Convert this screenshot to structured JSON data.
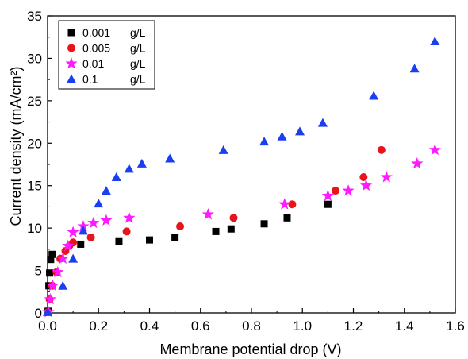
{
  "chart_data": {
    "type": "scatter",
    "xlabel": "Membrane potential drop (V)",
    "ylabel": "Current density (mA/cm²)",
    "xlim": [
      0,
      1.6
    ],
    "ylim": [
      0,
      35
    ],
    "xticks": [
      "0.0",
      "0.2",
      "0.4",
      "0.6",
      "0.8",
      "1.0",
      "1.2",
      "1.4",
      "1.6"
    ],
    "yticks": [
      "0",
      "5",
      "10",
      "15",
      "20",
      "25",
      "30",
      "35"
    ],
    "legend_position": "top-left",
    "grid": false,
    "series": [
      {
        "name": "0.001 g/L",
        "legend_name": "0.001",
        "legend_unit": "g/L",
        "marker": "square",
        "color": "#000000",
        "points": [
          [
            0.002,
            0.2
          ],
          [
            0.005,
            3.2
          ],
          [
            0.008,
            4.7
          ],
          [
            0.012,
            6.3
          ],
          [
            0.018,
            6.9
          ],
          [
            0.13,
            8.1
          ],
          [
            0.28,
            8.4
          ],
          [
            0.4,
            8.6
          ],
          [
            0.5,
            8.9
          ],
          [
            0.66,
            9.6
          ],
          [
            0.72,
            9.9
          ],
          [
            0.85,
            10.5
          ],
          [
            0.94,
            11.2
          ],
          [
            1.1,
            12.8
          ]
        ]
      },
      {
        "name": "0.005 g/L",
        "legend_name": "0.005",
        "legend_unit": "g/L",
        "marker": "circle",
        "color": "#e8141b",
        "points": [
          [
            0.002,
            0.1
          ],
          [
            0.008,
            1.6
          ],
          [
            0.018,
            3.2
          ],
          [
            0.035,
            4.8
          ],
          [
            0.05,
            6.4
          ],
          [
            0.07,
            7.3
          ],
          [
            0.085,
            7.9
          ],
          [
            0.1,
            8.3
          ],
          [
            0.17,
            8.9
          ],
          [
            0.31,
            9.6
          ],
          [
            0.52,
            10.2
          ],
          [
            0.73,
            11.2
          ],
          [
            0.96,
            12.8
          ],
          [
            1.13,
            14.4
          ],
          [
            1.24,
            16.0
          ],
          [
            1.31,
            19.2
          ]
        ]
      },
      {
        "name": "0.01 g/L",
        "legend_name": "0.01",
        "legend_unit": "g/L",
        "marker": "star",
        "color": "#ff1aff",
        "points": [
          [
            0.003,
            0.1
          ],
          [
            0.01,
            1.6
          ],
          [
            0.02,
            3.2
          ],
          [
            0.04,
            4.8
          ],
          [
            0.06,
            6.4
          ],
          [
            0.08,
            7.9
          ],
          [
            0.1,
            9.5
          ],
          [
            0.14,
            10.2
          ],
          [
            0.18,
            10.6
          ],
          [
            0.23,
            10.9
          ],
          [
            0.32,
            11.2
          ],
          [
            0.63,
            11.6
          ],
          [
            0.93,
            12.8
          ],
          [
            1.1,
            13.8
          ],
          [
            1.18,
            14.4
          ],
          [
            1.25,
            15.0
          ],
          [
            1.33,
            16.0
          ],
          [
            1.45,
            17.6
          ],
          [
            1.52,
            19.2
          ]
        ]
      },
      {
        "name": "0.1 g/L",
        "legend_name": "0.1",
        "legend_unit": "g/L",
        "marker": "triangle",
        "color": "#1a3ff0",
        "points": [
          [
            0.0,
            0.1
          ],
          [
            0.06,
            3.2
          ],
          [
            0.1,
            6.4
          ],
          [
            0.14,
            9.7
          ],
          [
            0.2,
            12.9
          ],
          [
            0.23,
            14.4
          ],
          [
            0.27,
            16.0
          ],
          [
            0.32,
            17.0
          ],
          [
            0.37,
            17.6
          ],
          [
            0.48,
            18.2
          ],
          [
            0.69,
            19.2
          ],
          [
            0.85,
            20.2
          ],
          [
            0.92,
            20.8
          ],
          [
            0.99,
            21.4
          ],
          [
            1.08,
            22.4
          ],
          [
            1.28,
            25.6
          ],
          [
            1.44,
            28.8
          ],
          [
            1.52,
            32.0
          ]
        ]
      }
    ]
  }
}
